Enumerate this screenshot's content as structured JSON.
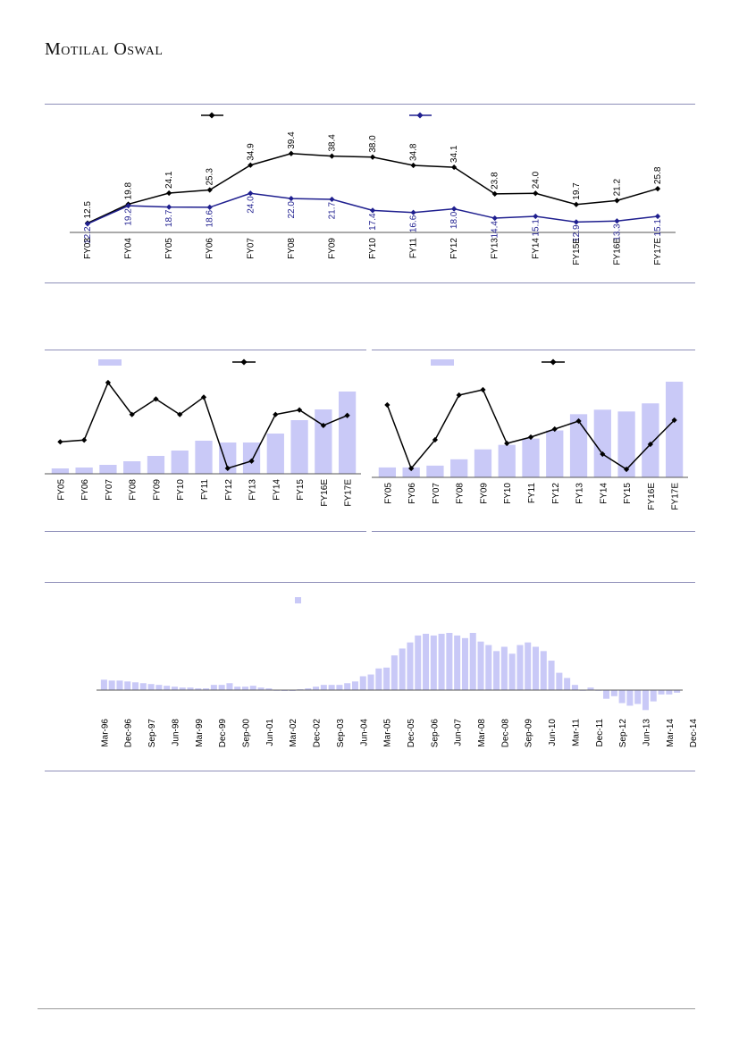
{
  "header": {
    "logo_text": "Motilal Oswal"
  },
  "colors": {
    "bar": "#c9c9f7",
    "line_black": "#000000",
    "line_navy": "#1f1f8f",
    "rule": "#8e8fb9"
  },
  "chart_data": [
    {
      "type": "line",
      "categories": [
        "FY03",
        "FY04",
        "FY05",
        "FY06",
        "FY07",
        "FY08",
        "FY09",
        "FY10",
        "FY11",
        "FY12",
        "FY13",
        "FY14",
        "FY15E",
        "FY16E",
        "FY17E"
      ],
      "series": [
        {
          "values": [
            12.5,
            19.8,
            24.1,
            25.3,
            34.9,
            39.4,
            38.4,
            38.0,
            34.8,
            34.1,
            23.8,
            24.0,
            19.7,
            21.2,
            25.8
          ],
          "color": "#000000",
          "label_position": "above"
        },
        {
          "values": [
            12.2,
            19.2,
            18.7,
            18.6,
            24.0,
            22.0,
            21.7,
            17.4,
            16.6,
            18.0,
            14.4,
            15.1,
            12.9,
            13.3,
            15.1
          ],
          "color": "#1f1f8f",
          "label_position": "below"
        }
      ],
      "legend": "top-center"
    },
    {
      "type": "bar+line",
      "categories": [
        "FY05",
        "FY06",
        "FY07",
        "FY08",
        "FY09",
        "FY10",
        "FY11",
        "FY12",
        "FY13",
        "FY14",
        "FY15",
        "FY16E",
        "FY17E"
      ],
      "bars": [
        6,
        7,
        10,
        14,
        20,
        26,
        37,
        35,
        35,
        45,
        60,
        72,
        92
      ],
      "line": [
        35,
        37,
        100,
        65,
        82,
        65,
        84,
        6,
        14,
        65,
        70,
        53,
        64
      ],
      "legend": "top"
    },
    {
      "type": "bar+line",
      "categories": [
        "FY05",
        "FY06",
        "FY07",
        "FY08",
        "FY09",
        "FY10",
        "FY11",
        "FY12",
        "FY13",
        "FY14",
        "FY15",
        "FY16E",
        "FY17E"
      ],
      "bars": [
        11,
        11,
        13,
        20,
        31,
        36,
        43,
        52,
        70,
        75,
        73,
        82,
        106
      ],
      "line": [
        81,
        10,
        42,
        92,
        98,
        38,
        45,
        54,
        63,
        26,
        9,
        37,
        64
      ],
      "legend": "top"
    },
    {
      "type": "bar",
      "tick_labels": [
        "Mar-96",
        "Dec-96",
        "Sep-97",
        "Jun-98",
        "Mar-99",
        "Dec-99",
        "Sep-00",
        "Jun-01",
        "Mar-02",
        "Dec-02",
        "Sep-03",
        "Jun-04",
        "Mar-05",
        "Dec-05",
        "Sep-06",
        "Jun-07",
        "Mar-08",
        "Dec-08",
        "Sep-09",
        "Jun-10",
        "Mar-11",
        "Dec-11",
        "Sep-12",
        "Jun-13",
        "Mar-14",
        "Dec-14"
      ],
      "values": [
        12,
        11,
        11,
        10,
        9,
        8,
        7,
        6,
        5,
        4,
        3,
        3,
        2,
        2,
        6,
        6,
        8,
        4,
        4,
        5,
        3,
        2,
        0,
        -1,
        -1,
        1,
        2,
        4,
        6,
        6,
        6,
        8,
        10,
        16,
        18,
        25,
        26,
        40,
        48,
        55,
        63,
        65,
        63,
        65,
        66,
        63,
        60,
        66,
        56,
        52,
        45,
        50,
        42,
        52,
        55,
        50,
        45,
        34,
        20,
        14,
        6,
        0,
        3,
        0,
        -10,
        -7,
        -15,
        -18,
        -16,
        -23,
        -13,
        -5,
        -5,
        -3
      ],
      "baseline": 0,
      "legend": "top-center"
    }
  ]
}
